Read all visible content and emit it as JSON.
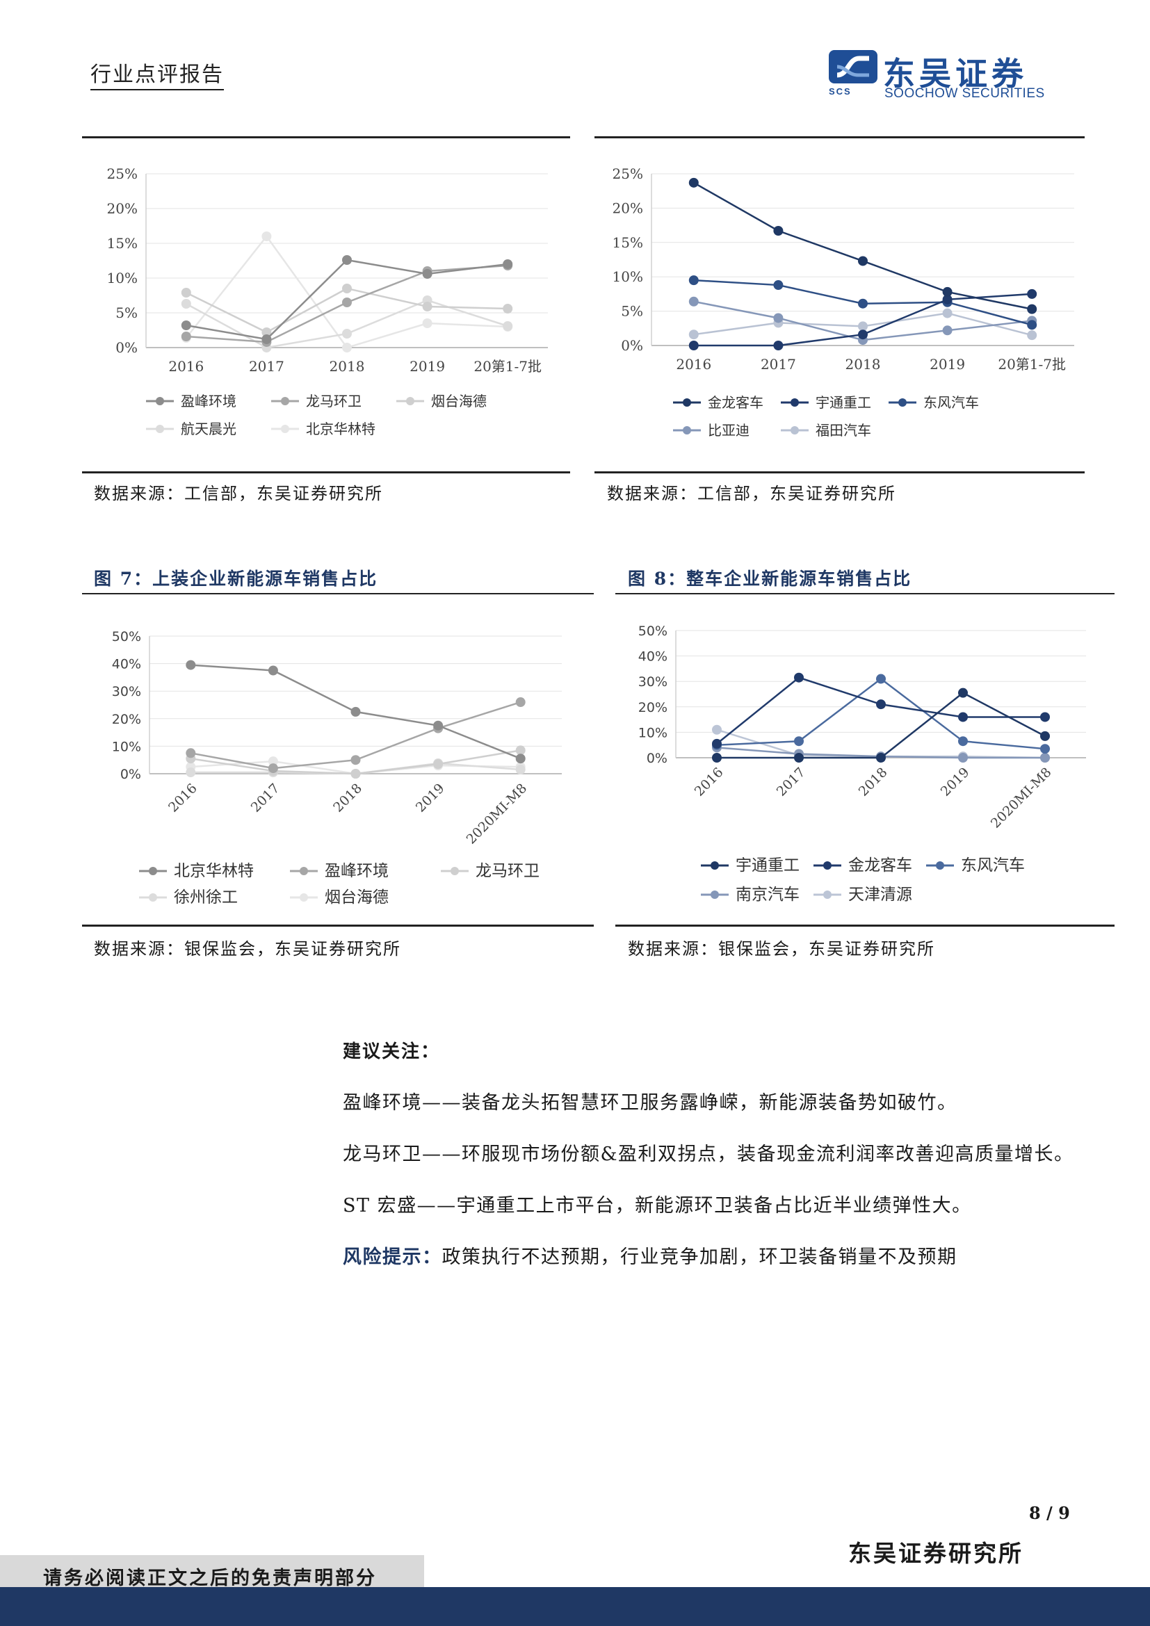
{
  "header": {
    "title": "行业点评报告"
  },
  "logo": {
    "cn": "东吴证券",
    "en": "SOOCHOW SECURITIES",
    "abbr": "SCS"
  },
  "colors": {
    "navy": "#1f3864",
    "brand": "#1f4e96"
  },
  "charts_top": {
    "left_source": "数据来源：工信部，东吴证券研究所",
    "right_source": "数据来源：工信部，东吴证券研究所"
  },
  "fig7": {
    "title": "图 7：上装企业新能源车销售占比",
    "source": "数据来源：银保监会，东吴证券研究所"
  },
  "fig8": {
    "title": "图 8：整车企业新能源车销售占比",
    "source": "数据来源：银保监会，东吴证券研究所"
  },
  "chart_data": [
    {
      "type": "line",
      "x": [
        "2016",
        "2017",
        "2018",
        "2019",
        "20第1-7批"
      ],
      "ylim": [
        0,
        25
      ],
      "yticks": [
        "0%",
        "5%",
        "10%",
        "15%",
        "20%",
        "25%"
      ],
      "legend_position": "bottom",
      "series": [
        {
          "name": "盈峰环境",
          "color": "#8c8c8c",
          "values": [
            3.2,
            1.2,
            12.6,
            10.6,
            12.0
          ]
        },
        {
          "name": "龙马环卫",
          "color": "#a6a6a6",
          "values": [
            1.6,
            0.8,
            6.5,
            11.0,
            11.8
          ]
        },
        {
          "name": "烟台海德",
          "color": "#cfcfcf",
          "values": [
            7.9,
            2.2,
            8.5,
            5.9,
            5.6
          ]
        },
        {
          "name": "航天晨光",
          "color": "#dcdcdc",
          "values": [
            6.3,
            0.0,
            2.0,
            6.8,
            3.1
          ]
        },
        {
          "name": "北京华林特",
          "color": "#e6e6e6",
          "values": [
            1.4,
            16.0,
            0.0,
            3.5,
            3.0
          ]
        }
      ]
    },
    {
      "type": "line",
      "x": [
        "2016",
        "2017",
        "2018",
        "2019",
        "20第1-7批"
      ],
      "ylim": [
        0,
        25
      ],
      "yticks": [
        "0%",
        "5%",
        "10%",
        "15%",
        "20%",
        "25%"
      ],
      "legend_position": "bottom",
      "series": [
        {
          "name": "金龙客车",
          "color": "#1f3864",
          "values": [
            23.7,
            16.7,
            12.3,
            7.8,
            5.3
          ]
        },
        {
          "name": "宇通重工",
          "color": "#203a6b",
          "values": [
            0.0,
            0.0,
            1.6,
            6.7,
            7.5
          ]
        },
        {
          "name": "东风汽车",
          "color": "#2e4f85",
          "values": [
            9.5,
            8.8,
            6.1,
            6.3,
            3.0
          ]
        },
        {
          "name": "比亚迪",
          "color": "#8597b8",
          "values": [
            6.4,
            4.0,
            0.8,
            2.2,
            3.6
          ]
        },
        {
          "name": "福田汽车",
          "color": "#b9c2d3",
          "values": [
            1.6,
            3.3,
            2.8,
            4.7,
            1.5
          ]
        }
      ]
    },
    {
      "type": "line",
      "x": [
        "2016",
        "2017",
        "2018",
        "2019",
        "2020MI-M8"
      ],
      "ylim": [
        0,
        50
      ],
      "yticks": [
        "0%",
        "10%",
        "20%",
        "30%",
        "40%",
        "50%"
      ],
      "legend_position": "bottom",
      "series": [
        {
          "name": "北京华林特",
          "color": "#8c8c8c",
          "values": [
            39.5,
            37.5,
            22.5,
            17.5,
            5.5
          ]
        },
        {
          "name": "盈峰环境",
          "color": "#a6a6a6",
          "values": [
            7.5,
            2.0,
            5.0,
            16.5,
            26.0
          ]
        },
        {
          "name": "龙马环卫",
          "color": "#cfcfcf",
          "values": [
            5.5,
            1.0,
            0.0,
            3.5,
            8.5
          ]
        },
        {
          "name": "徐州徐工",
          "color": "#dcdcdc",
          "values": [
            0.5,
            0.5,
            0.0,
            3.8,
            1.5
          ]
        },
        {
          "name": "烟台海德",
          "color": "#e6e6e6",
          "values": [
            2.5,
            4.5,
            0.0,
            3.0,
            2.5
          ]
        }
      ]
    },
    {
      "type": "line",
      "x": [
        "2016",
        "2017",
        "2018",
        "2019",
        "2020MI-M8"
      ],
      "ylim": [
        0,
        50
      ],
      "yticks": [
        "0%",
        "10%",
        "20%",
        "30%",
        "40%",
        "50%"
      ],
      "legend_position": "bottom",
      "series": [
        {
          "name": "宇通重工",
          "color": "#1f3864",
          "values": [
            0.0,
            0.0,
            0.0,
            25.5,
            8.5
          ]
        },
        {
          "name": "金龙客车",
          "color": "#203a6b",
          "values": [
            5.5,
            31.5,
            21.0,
            16.0,
            16.0
          ]
        },
        {
          "name": "东风汽车",
          "color": "#4a6a9e",
          "values": [
            5.0,
            6.5,
            31.0,
            6.5,
            3.5
          ]
        },
        {
          "name": "南京汽车",
          "color": "#8597b8",
          "values": [
            4.0,
            1.5,
            0.5,
            0.0,
            0.0
          ]
        },
        {
          "name": "天津清源",
          "color": "#bcc5d6",
          "values": [
            11.0,
            1.0,
            0.5,
            0.5,
            0.0
          ]
        }
      ]
    }
  ],
  "recommendations": {
    "heading": "建议关注：",
    "items": [
      "盈峰环境——装备龙头拓智慧环卫服务露峥嵘，新能源装备势如破竹。",
      "龙马环卫——环服现市场份额&盈利双拐点，装备现金流利润率改善迎高质量增长。",
      "ST 宏盛——宇通重工上市平台，新能源环卫装备占比近半业绩弹性大。"
    ],
    "risk_label": "风险提示：",
    "risk_text": "政策执行不达预期，行业竞争加剧，环卫装备销量不及预期"
  },
  "footer": {
    "page": "8 / 9",
    "org": "东吴证券研究所",
    "disclaimer": "请务必阅读正文之后的免责声明部分"
  }
}
